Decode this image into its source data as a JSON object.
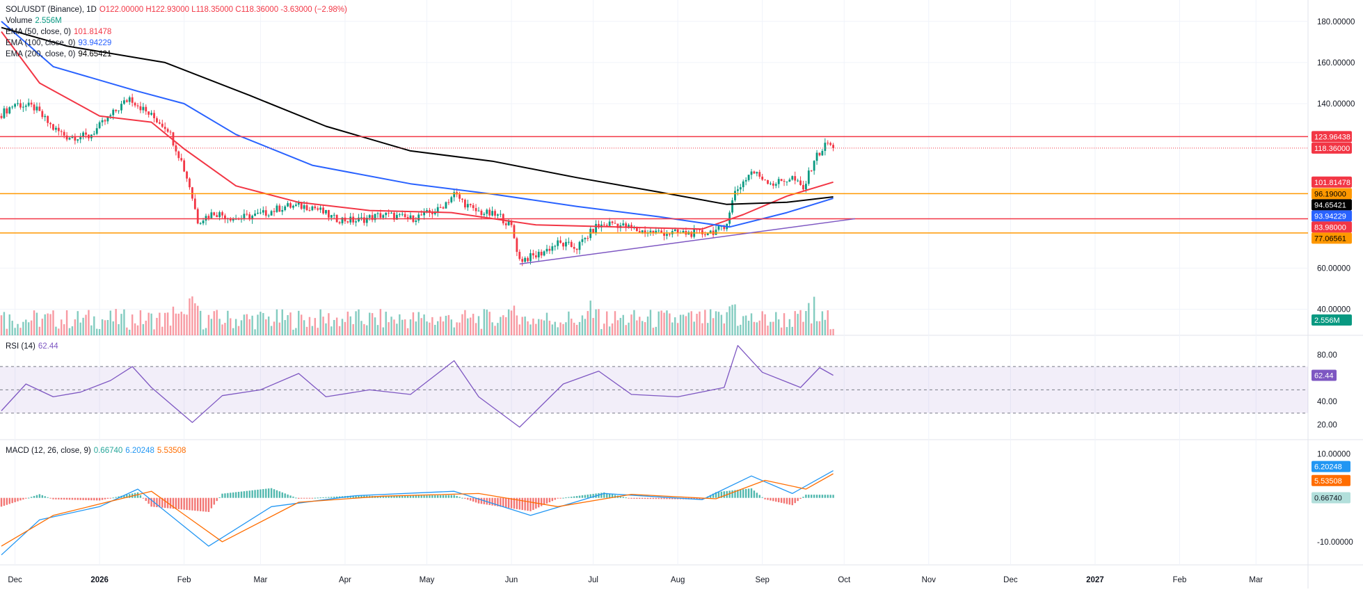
{
  "header": {
    "symbol": "SOL/USDT (Binance), 1D",
    "ohlc": "O122.00000 H122.93000 L118.35000 C118.36000 -3.63000 (−2.98%)",
    "volume_label": "Volume",
    "volume_value": "2.556M",
    "ema50_label": "EMA (50, close, 0)",
    "ema50_value": "101.81478",
    "ema100_label": "EMA (100, close, 0)",
    "ema100_value": "93.94229",
    "ema200_label": "EMA (200, close, 0)",
    "ema200_value": "94.65421"
  },
  "rsi_legend": {
    "label": "RSI (14)",
    "value": "62.44"
  },
  "macd_legend": {
    "label": "MACD (12, 26, close, 9)",
    "hist": "0.66740",
    "macd": "6.20248",
    "signal": "5.53508"
  },
  "colors": {
    "up": "#089981",
    "down": "#f23645",
    "ema50": "#f23645",
    "ema100": "#2962ff",
    "ema200": "#000000",
    "orange": "#ff9800",
    "red_line": "#f23645",
    "purple": "#7e57c2",
    "rsi": "#7e57c2",
    "macd": "#2196f3",
    "signal": "#ff6d00",
    "hist_up": "#26a69a",
    "hist_down": "#ef5350"
  },
  "chart_data": [
    {
      "type": "candlestick",
      "title": "SOL/USDT (Binance), 1D",
      "y_axis_ticks": [
        "180.00000",
        "160.00000",
        "140.00000",
        "60.00000",
        "40.00000"
      ],
      "x_axis_ticks": [
        "Dec",
        "2026",
        "Feb",
        "Mar",
        "Apr",
        "May",
        "Jun",
        "Jul",
        "Aug",
        "Sep",
        "Oct",
        "Nov",
        "Dec",
        "2027",
        "Feb",
        "Mar"
      ],
      "ylim": [
        30,
        185
      ],
      "price_path": [
        [
          "2025-11-26",
          135
        ],
        [
          "2025-12-01",
          140
        ],
        [
          "2025-12-08",
          138
        ],
        [
          "2025-12-15",
          128
        ],
        [
          "2025-12-20",
          124
        ],
        [
          "2025-12-28",
          124
        ],
        [
          "2026-01-05",
          134
        ],
        [
          "2026-01-12",
          143
        ],
        [
          "2026-01-18",
          136
        ],
        [
          "2026-01-26",
          128
        ],
        [
          "2026-01-31",
          112
        ],
        [
          "2026-02-03",
          100
        ],
        [
          "2026-02-06",
          83
        ],
        [
          "2026-02-12",
          87
        ],
        [
          "2026-02-20",
          84
        ],
        [
          "2026-03-01",
          86
        ],
        [
          "2026-03-10",
          90
        ],
        [
          "2026-03-20",
          90
        ],
        [
          "2026-03-28",
          84
        ],
        [
          "2026-04-05",
          83
        ],
        [
          "2026-04-15",
          86
        ],
        [
          "2026-04-25",
          84
        ],
        [
          "2026-05-05",
          88
        ],
        [
          "2026-05-11",
          96
        ],
        [
          "2026-05-18",
          88
        ],
        [
          "2026-05-28",
          85
        ],
        [
          "2026-06-01",
          80
        ],
        [
          "2026-06-04",
          64
        ],
        [
          "2026-06-10",
          66
        ],
        [
          "2026-06-18",
          72
        ],
        [
          "2026-06-25",
          70
        ],
        [
          "2026-07-02",
          80
        ],
        [
          "2026-07-08",
          82
        ],
        [
          "2026-07-18",
          78
        ],
        [
          "2026-07-30",
          77
        ],
        [
          "2026-08-10",
          77
        ],
        [
          "2026-08-18",
          79
        ],
        [
          "2026-08-22",
          97
        ],
        [
          "2026-08-28",
          107
        ],
        [
          "2026-09-05",
          101
        ],
        [
          "2026-09-12",
          104
        ],
        [
          "2026-09-16",
          98
        ],
        [
          "2026-09-20",
          113
        ],
        [
          "2026-09-25",
          121
        ],
        [
          "2026-09-27",
          118.36
        ]
      ],
      "last_close": 118.36,
      "series": [
        {
          "name": "EMA (50, close, 0)",
          "last": 101.81478,
          "path": [
            [
              "2025-11-26",
              175
            ],
            [
              "2025-12-10",
              150
            ],
            [
              "2026-01-01",
              134
            ],
            [
              "2026-01-20",
              131
            ],
            [
              "2026-02-01",
              118
            ],
            [
              "2026-02-20",
              100
            ],
            [
              "2026-03-15",
              92
            ],
            [
              "2026-04-10",
              88
            ],
            [
              "2026-05-10",
              87
            ],
            [
              "2026-06-10",
              81
            ],
            [
              "2026-07-10",
              80
            ],
            [
              "2026-08-10",
              79
            ],
            [
              "2026-08-25",
              86
            ],
            [
              "2026-09-10",
              95
            ],
            [
              "2026-09-27",
              101.81
            ]
          ]
        },
        {
          "name": "EMA (100, close, 0)",
          "last": 93.94229,
          "path": [
            [
              "2025-11-26",
              180
            ],
            [
              "2025-12-15",
              158
            ],
            [
              "2026-01-15",
              146
            ],
            [
              "2026-02-01",
              140
            ],
            [
              "2026-02-20",
              125
            ],
            [
              "2026-03-20",
              110
            ],
            [
              "2026-04-25",
              101
            ],
            [
              "2026-05-25",
              96
            ],
            [
              "2026-06-25",
              90
            ],
            [
              "2026-07-25",
              85
            ],
            [
              "2026-08-20",
              80
            ],
            [
              "2026-09-10",
              87
            ],
            [
              "2026-09-27",
              93.94
            ]
          ]
        },
        {
          "name": "EMA (200, close, 0)",
          "last": 94.65421,
          "path": [
            [
              "2025-11-26",
              177
            ],
            [
              "2025-12-20",
              168
            ],
            [
              "2026-01-25",
              160
            ],
            [
              "2026-02-25",
              144
            ],
            [
              "2026-03-25",
              129
            ],
            [
              "2026-04-25",
              117
            ],
            [
              "2026-05-25",
              112
            ],
            [
              "2026-06-25",
              104
            ],
            [
              "2026-07-25",
              97
            ],
            [
              "2026-08-19",
              91
            ],
            [
              "2026-09-10",
              92
            ],
            [
              "2026-09-27",
              94.65
            ]
          ]
        }
      ],
      "horizontal_levels": [
        {
          "value": 123.96438,
          "label": "123.96438",
          "color": "#f23645"
        },
        {
          "value": 118.36,
          "label": "118.36000",
          "color": "#f23645",
          "style": "dotted"
        },
        {
          "value": 96.19,
          "label": "96.19000",
          "color": "#ff9800"
        },
        {
          "value": 83.98,
          "label": "83.98000",
          "color": "#f23645"
        },
        {
          "value": 77.06561,
          "label": "77.06561",
          "color": "#ff9800"
        }
      ],
      "trendline": {
        "from": [
          "2026-06-04",
          62
        ],
        "to": [
          "2026-10-05",
          84
        ],
        "color": "#7e57c2"
      },
      "axis_badges": [
        {
          "label": "123.96438",
          "bg": "#f23645",
          "fg": "#ffffff",
          "value": 123.96438
        },
        {
          "label": "118.36000",
          "bg": "#f23645",
          "fg": "#ffffff",
          "value": 118.36
        },
        {
          "label": "101.81478",
          "bg": "#f23645",
          "fg": "#ffffff",
          "value": 101.81478
        },
        {
          "label": "96.19000",
          "bg": "#ff9800",
          "fg": "#000000",
          "value": 96.19
        },
        {
          "label": "94.65421",
          "bg": "#000000",
          "fg": "#ffffff",
          "value": 94.65421
        },
        {
          "label": "93.94229",
          "bg": "#2962ff",
          "fg": "#ffffff",
          "value": 93.94229
        },
        {
          "label": "83.98000",
          "bg": "#f23645",
          "fg": "#ffffff",
          "value": 83.98
        },
        {
          "label": "77.06561",
          "bg": "#ff9800",
          "fg": "#000000",
          "value": 77.06561
        },
        {
          "label": "2.556M",
          "bg": "#089981",
          "fg": "#ffffff",
          "value": 33
        }
      ]
    },
    {
      "type": "line",
      "title": "RSI (14)",
      "y_axis_ticks": [
        "80.00",
        "40.00",
        "20.00"
      ],
      "ylim": [
        12,
        92
      ],
      "bands": [
        70,
        50,
        30
      ],
      "last": 62.44,
      "path": [
        [
          "2025-11-26",
          32
        ],
        [
          "2025-12-05",
          55
        ],
        [
          "2025-12-15",
          44
        ],
        [
          "2025-12-25",
          48
        ],
        [
          "2026-01-05",
          58
        ],
        [
          "2026-01-13",
          70
        ],
        [
          "2026-01-20",
          52
        ],
        [
          "2026-02-04",
          22
        ],
        [
          "2026-02-15",
          45
        ],
        [
          "2026-03-01",
          50
        ],
        [
          "2026-03-15",
          64
        ],
        [
          "2026-03-25",
          44
        ],
        [
          "2026-04-10",
          50
        ],
        [
          "2026-04-25",
          46
        ],
        [
          "2026-05-11",
          75
        ],
        [
          "2026-05-20",
          44
        ],
        [
          "2026-06-04",
          18
        ],
        [
          "2026-06-20",
          55
        ],
        [
          "2026-07-03",
          66
        ],
        [
          "2026-07-15",
          46
        ],
        [
          "2026-08-01",
          44
        ],
        [
          "2026-08-18",
          52
        ],
        [
          "2026-08-23",
          88
        ],
        [
          "2026-09-01",
          65
        ],
        [
          "2026-09-15",
          52
        ],
        [
          "2026-09-22",
          69
        ],
        [
          "2026-09-27",
          62.44
        ]
      ]
    },
    {
      "type": "bar",
      "title": "MACD (12, 26, close, 9)",
      "y_axis_ticks": [
        "10.00000",
        "-10.00000"
      ],
      "ylim": [
        -14,
        12
      ],
      "last": {
        "hist": 0.6674,
        "macd": 6.20248,
        "signal": 5.53508
      },
      "macd_path": [
        [
          "2025-11-26",
          -13
        ],
        [
          "2025-12-10",
          -5
        ],
        [
          "2026-01-01",
          -2
        ],
        [
          "2026-01-15",
          2
        ],
        [
          "2026-02-10",
          -11
        ],
        [
          "2026-03-05",
          -2
        ],
        [
          "2026-04-05",
          0.5
        ],
        [
          "2026-05-11",
          1.5
        ],
        [
          "2026-06-08",
          -4
        ],
        [
          "2026-07-05",
          1
        ],
        [
          "2026-08-10",
          -0.4
        ],
        [
          "2026-08-28",
          5
        ],
        [
          "2026-09-12",
          1
        ],
        [
          "2026-09-27",
          6.2
        ]
      ],
      "signal_path": [
        [
          "2025-11-26",
          -11
        ],
        [
          "2025-12-15",
          -4
        ],
        [
          "2026-01-20",
          1.5
        ],
        [
          "2026-02-15",
          -10
        ],
        [
          "2026-03-15",
          -1
        ],
        [
          "2026-04-15",
          0.4
        ],
        [
          "2026-05-20",
          1
        ],
        [
          "2026-06-18",
          -2
        ],
        [
          "2026-07-15",
          0.8
        ],
        [
          "2026-08-15",
          -0.2
        ],
        [
          "2026-09-02",
          4
        ],
        [
          "2026-09-17",
          2
        ],
        [
          "2026-09-27",
          5.5
        ]
      ]
    }
  ]
}
